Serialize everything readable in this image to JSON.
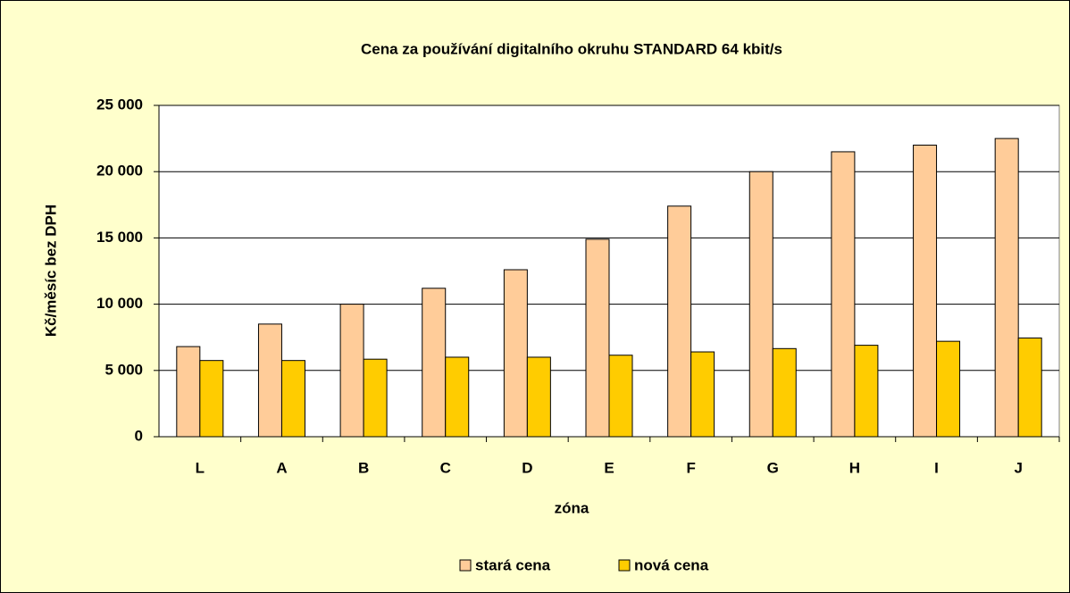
{
  "chart_data": {
    "type": "bar",
    "title": "Cena za používání digitalního okruhu STANDARD 64 kbit/s",
    "x_label": "zóna",
    "y_label": "Kč/měsíc bez DPH",
    "categories": [
      "L",
      "A",
      "B",
      "C",
      "D",
      "E",
      "F",
      "G",
      "H",
      "I",
      "J"
    ],
    "series": [
      {
        "name": "stará cena",
        "color": "#ffcc99",
        "values": [
          6800,
          8500,
          10000,
          11200,
          12600,
          14900,
          17400,
          20000,
          21500,
          22000,
          22500
        ]
      },
      {
        "name": "nová cena",
        "color": "#ffcc00",
        "values": [
          5750,
          5750,
          5850,
          6000,
          6000,
          6150,
          6400,
          6650,
          6900,
          7200,
          7450
        ]
      }
    ],
    "ylim": [
      0,
      25000
    ],
    "yticks": [
      0,
      {
        "value": 5000,
        "label": "5 000"
      },
      {
        "value": 10000,
        "label": "10 000"
      },
      {
        "value": 15000,
        "label": "15 000"
      },
      {
        "value": 20000,
        "label": "20 000"
      },
      {
        "value": 25000,
        "label": "25 000"
      }
    ],
    "grid": true,
    "legend": "bottom"
  }
}
